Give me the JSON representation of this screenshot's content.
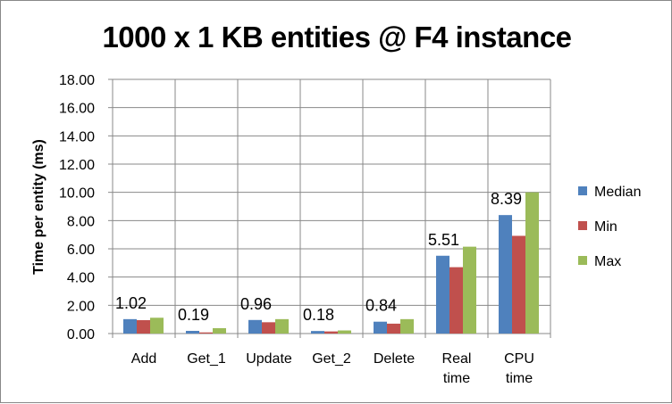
{
  "chart_data": {
    "type": "bar",
    "title": "1000 x 1 KB entities @ F4 instance",
    "xlabel": "",
    "ylabel": "Time per entity (ms)",
    "ylim": [
      0,
      18
    ],
    "yticks": [
      "0.00",
      "2.00",
      "4.00",
      "6.00",
      "8.00",
      "10.00",
      "12.00",
      "14.00",
      "16.00",
      "18.00"
    ],
    "grid": true,
    "legend_position": "right",
    "categories": [
      [
        "Add"
      ],
      [
        "Get_1"
      ],
      [
        "Update"
      ],
      [
        "Get_2"
      ],
      [
        "Delete"
      ],
      [
        "Real",
        "time"
      ],
      [
        "CPU",
        "time"
      ]
    ],
    "series": [
      {
        "name": "Median",
        "color": "#4f81bd",
        "values": [
          1.02,
          0.19,
          0.96,
          0.18,
          0.84,
          5.51,
          8.39
        ]
      },
      {
        "name": "Min",
        "color": "#c0504d",
        "values": [
          0.95,
          0.08,
          0.8,
          0.15,
          0.7,
          4.7,
          6.92
        ]
      },
      {
        "name": "Max",
        "color": "#9bbb59",
        "values": [
          1.12,
          0.38,
          1.02,
          0.22,
          1.02,
          6.15,
          10.0
        ]
      }
    ],
    "data_labels": [
      "1.02",
      "0.19",
      "0.96",
      "0.18",
      "0.84",
      "5.51",
      "8.39"
    ]
  }
}
